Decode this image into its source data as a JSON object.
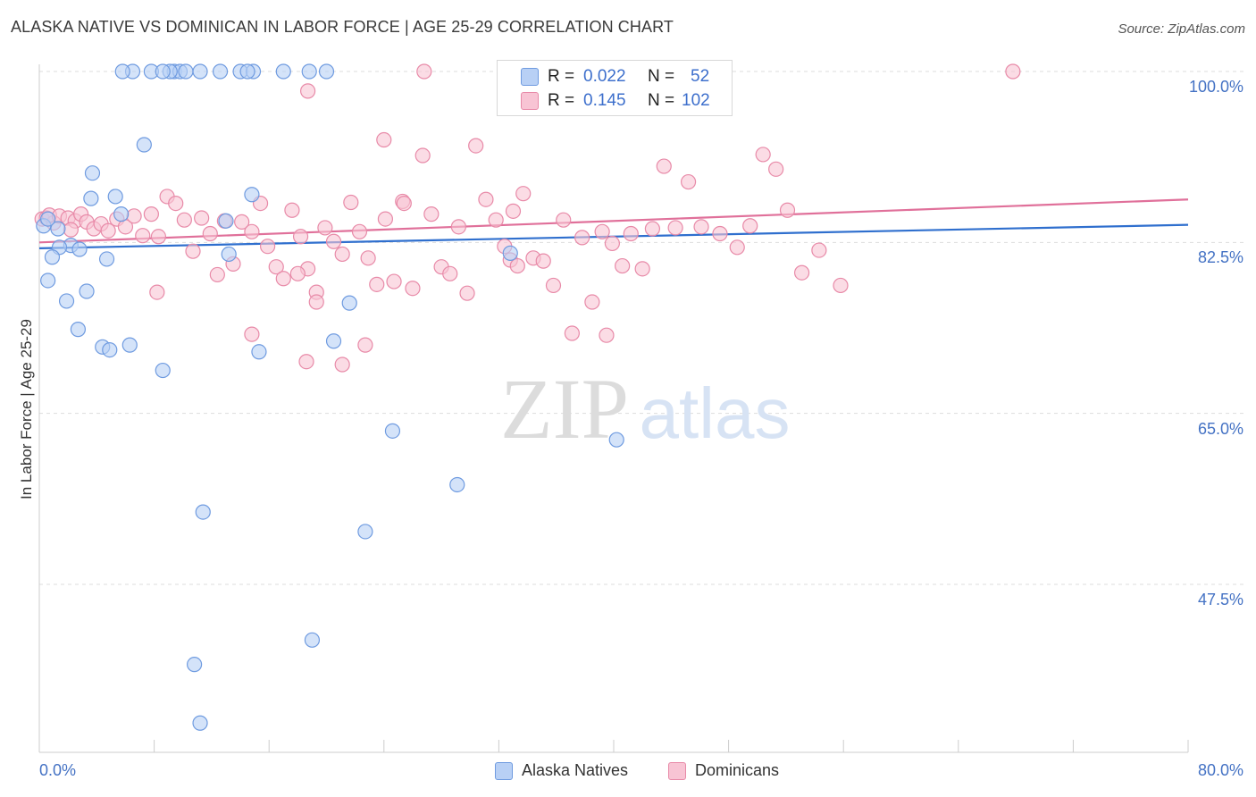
{
  "header": {
    "title": "ALASKA NATIVE VS DOMINICAN IN LABOR FORCE | AGE 25-29 CORRELATION CHART",
    "source": "Source: ZipAtlas.com"
  },
  "watermark": {
    "zip": "ZIP",
    "atlas": "atlas"
  },
  "colors": {
    "alaska_fill": "#b8d0f5",
    "alaska_stroke": "#6f9be0",
    "alaska_line": "#2f6fce",
    "dominican_fill": "#f8c4d4",
    "dominican_stroke": "#e88aa8",
    "dominican_line": "#e0709a",
    "tick_text": "#4472c4"
  },
  "legend": {
    "r_label": "R =",
    "n_label": "N =",
    "alaska": {
      "r": "0.022",
      "n": "52"
    },
    "dominican": {
      "r": "0.145",
      "n": "102"
    }
  },
  "bottom_legend": {
    "alaska": "Alaska Natives",
    "dominican": "Dominicans"
  },
  "chart_data": {
    "type": "scatter",
    "xlabel": "",
    "ylabel": "In Labor Force | Age 25-29",
    "xlim": [
      0,
      80
    ],
    "ylim": [
      32,
      101
    ],
    "x_tick_labels": [
      "0.0%",
      "80.0%"
    ],
    "y_ticks": [
      100,
      82.5,
      65,
      47.5
    ],
    "y_tick_labels": [
      "100.0%",
      "82.5%",
      "65.0%",
      "47.5%"
    ],
    "grid": true,
    "legend_position": "top-center",
    "series": [
      {
        "name": "Alaska Natives",
        "trend": {
          "x": [
            0,
            80
          ],
          "y": [
            81.9,
            84.3
          ]
        },
        "points": [
          [
            0.3,
            84.2
          ],
          [
            1.3,
            83.9
          ],
          [
            0.6,
            84.9
          ],
          [
            2.2,
            82.2
          ],
          [
            1.4,
            82.0
          ],
          [
            2.8,
            81.8
          ],
          [
            0.9,
            81.0
          ],
          [
            4.7,
            80.8
          ],
          [
            0.6,
            78.6
          ],
          [
            3.3,
            77.5
          ],
          [
            1.9,
            76.5
          ],
          [
            2.7,
            73.6
          ],
          [
            4.4,
            71.8
          ],
          [
            4.9,
            71.5
          ],
          [
            6.3,
            72.0
          ],
          [
            8.6,
            69.4
          ],
          [
            3.7,
            89.6
          ],
          [
            3.6,
            87.0
          ],
          [
            5.3,
            87.2
          ],
          [
            7.3,
            92.5
          ],
          [
            5.7,
            85.4
          ],
          [
            14.8,
            87.4
          ],
          [
            13.0,
            84.7
          ],
          [
            13.2,
            81.3
          ],
          [
            7.8,
            100
          ],
          [
            6.5,
            100
          ],
          [
            5.8,
            100
          ],
          [
            9.4,
            100
          ],
          [
            9.8,
            100
          ],
          [
            10.2,
            100
          ],
          [
            11.2,
            100
          ],
          [
            12.6,
            100
          ],
          [
            14.0,
            100
          ],
          [
            14.9,
            100
          ],
          [
            17.0,
            100
          ],
          [
            18.8,
            100
          ],
          [
            20.0,
            100
          ],
          [
            9.1,
            100
          ],
          [
            8.6,
            100
          ],
          [
            14.5,
            100
          ],
          [
            15.3,
            71.3
          ],
          [
            20.5,
            72.4
          ],
          [
            21.6,
            76.3
          ],
          [
            32.8,
            81.4
          ],
          [
            24.6,
            63.2
          ],
          [
            40.2,
            62.3
          ],
          [
            29.1,
            57.7
          ],
          [
            11.4,
            54.9
          ],
          [
            22.7,
            52.9
          ],
          [
            19.0,
            41.8
          ],
          [
            10.8,
            39.3
          ],
          [
            11.2,
            33.3
          ]
        ]
      },
      {
        "name": "Dominicans",
        "trend": {
          "x": [
            0,
            80
          ],
          "y": [
            82.5,
            86.9
          ]
        },
        "points": [
          [
            0.2,
            84.9
          ],
          [
            0.5,
            85.0
          ],
          [
            1.0,
            84.5
          ],
          [
            0.7,
            85.3
          ],
          [
            1.4,
            85.2
          ],
          [
            2.0,
            85.0
          ],
          [
            2.5,
            84.7
          ],
          [
            2.9,
            85.4
          ],
          [
            3.3,
            84.6
          ],
          [
            3.8,
            83.9
          ],
          [
            4.3,
            84.4
          ],
          [
            4.8,
            83.7
          ],
          [
            5.4,
            84.9
          ],
          [
            6.0,
            84.1
          ],
          [
            6.6,
            85.2
          ],
          [
            7.2,
            83.2
          ],
          [
            7.8,
            85.4
          ],
          [
            8.3,
            83.1
          ],
          [
            8.9,
            87.2
          ],
          [
            9.5,
            86.5
          ],
          [
            10.1,
            84.8
          ],
          [
            10.7,
            81.6
          ],
          [
            11.3,
            85.0
          ],
          [
            11.9,
            83.4
          ],
          [
            12.4,
            79.2
          ],
          [
            12.9,
            84.7
          ],
          [
            13.5,
            80.3
          ],
          [
            14.1,
            84.6
          ],
          [
            14.8,
            83.6
          ],
          [
            15.4,
            86.5
          ],
          [
            15.9,
            82.1
          ],
          [
            16.5,
            80.0
          ],
          [
            17.0,
            78.8
          ],
          [
            17.6,
            85.8
          ],
          [
            18.2,
            83.1
          ],
          [
            18.7,
            79.8
          ],
          [
            19.3,
            77.4
          ],
          [
            19.9,
            84.0
          ],
          [
            20.5,
            82.6
          ],
          [
            21.1,
            81.3
          ],
          [
            21.7,
            86.6
          ],
          [
            22.3,
            83.6
          ],
          [
            22.9,
            80.9
          ],
          [
            23.5,
            78.2
          ],
          [
            24.1,
            84.9
          ],
          [
            24.7,
            78.5
          ],
          [
            25.3,
            86.7
          ],
          [
            26.0,
            77.8
          ],
          [
            26.7,
            91.4
          ],
          [
            27.3,
            85.4
          ],
          [
            28.0,
            80.0
          ],
          [
            28.6,
            79.3
          ],
          [
            29.2,
            84.1
          ],
          [
            29.8,
            77.3
          ],
          [
            30.4,
            92.4
          ],
          [
            31.1,
            86.9
          ],
          [
            31.8,
            84.8
          ],
          [
            32.4,
            82.1
          ],
          [
            33.0,
            85.7
          ],
          [
            33.7,
            87.5
          ],
          [
            34.4,
            80.9
          ],
          [
            35.1,
            80.6
          ],
          [
            35.8,
            78.1
          ],
          [
            36.5,
            84.8
          ],
          [
            37.1,
            73.2
          ],
          [
            37.8,
            83.0
          ],
          [
            38.5,
            76.4
          ],
          [
            39.2,
            83.6
          ],
          [
            39.9,
            82.4
          ],
          [
            40.6,
            80.1
          ],
          [
            41.2,
            83.4
          ],
          [
            42.0,
            79.8
          ],
          [
            42.7,
            83.9
          ],
          [
            43.5,
            90.3
          ],
          [
            44.3,
            84.0
          ],
          [
            45.2,
            88.7
          ],
          [
            46.1,
            84.1
          ],
          [
            47.4,
            83.4
          ],
          [
            48.6,
            82.0
          ],
          [
            49.5,
            84.2
          ],
          [
            50.4,
            91.5
          ],
          [
            51.3,
            90.0
          ],
          [
            52.1,
            85.8
          ],
          [
            53.1,
            79.4
          ],
          [
            54.3,
            81.7
          ],
          [
            55.8,
            78.1
          ],
          [
            8.2,
            77.4
          ],
          [
            14.8,
            73.1
          ],
          [
            18.7,
            98.0
          ],
          [
            19.3,
            76.4
          ],
          [
            21.1,
            70.0
          ],
          [
            22.7,
            72.0
          ],
          [
            24.0,
            93.0
          ],
          [
            25.4,
            86.5
          ],
          [
            26.8,
            100
          ],
          [
            32.8,
            80.7
          ],
          [
            33.3,
            80.1
          ],
          [
            39.5,
            73.0
          ],
          [
            18.6,
            70.3
          ],
          [
            18.0,
            79.3
          ],
          [
            67.8,
            100
          ],
          [
            2.2,
            83.8
          ]
        ]
      }
    ]
  }
}
